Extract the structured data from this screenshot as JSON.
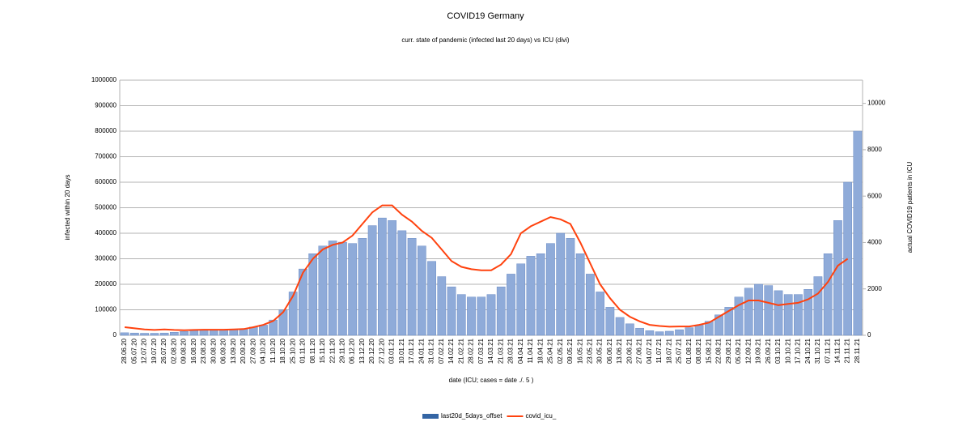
{
  "chart_data": {
    "type": "bar",
    "title": "COVID19 Germany",
    "subtitle": "curr. state of pandemic (infected last 20 days) vs ICU (divi)",
    "x_label": "date (ICU;  cases = date ./. 5 )",
    "y_label": "infected within 20 days",
    "y2_label": "actual COVID19 patients in ICU",
    "categories": [
      "28.06.20",
      "05.07.20",
      "12.07.20",
      "19.07.20",
      "26.07.20",
      "02.08.20",
      "09.08.20",
      "16.08.20",
      "23.08.20",
      "30.08.20",
      "06.09.20",
      "13.09.20",
      "20.09.20",
      "27.09.20",
      "04.10.20",
      "11.10.20",
      "18.10.20",
      "25.10.20",
      "01.11.20",
      "08.11.20",
      "15.11.20",
      "22.11.20",
      "29.11.20",
      "06.12.20",
      "13.12.20",
      "20.12.20",
      "27.12.20",
      "03.01.21",
      "10.01.21",
      "17.01.21",
      "24.01.21",
      "31.01.21",
      "07.02.21",
      "14.02.21",
      "21.02.21",
      "28.02.21",
      "07.03.21",
      "14.03.21",
      "21.03.21",
      "28.03.21",
      "04.04.21",
      "11.04.21",
      "18.04.21",
      "25.04.21",
      "02.05.21",
      "09.05.21",
      "16.05.21",
      "23.05.21",
      "30.05.21",
      "06.06.21",
      "13.06.21",
      "20.06.21",
      "27.06.21",
      "04.07.21",
      "11.07.21",
      "18.07.21",
      "25.07.21",
      "01.08.21",
      "08.08.21",
      "15.08.21",
      "22.08.21",
      "29.08.21",
      "05.09.21",
      "12.09.21",
      "19.09.21",
      "26.09.21",
      "03.10.21",
      "10.10.21",
      "17.10.21",
      "24.10.21",
      "31.10.21",
      "07.11.21",
      "14.11.21",
      "21.11.21",
      "28.11.21"
    ],
    "series": [
      {
        "name": "last20d_5days_offset",
        "type": "bar",
        "color": "#8fabd9",
        "values": [
          10000,
          9000,
          8000,
          8000,
          9000,
          12000,
          15000,
          19000,
          22000,
          23000,
          22000,
          23000,
          26000,
          32000,
          40000,
          60000,
          100000,
          170000,
          260000,
          320000,
          350000,
          370000,
          365000,
          360000,
          380000,
          430000,
          460000,
          450000,
          410000,
          380000,
          350000,
          290000,
          230000,
          190000,
          160000,
          150000,
          150000,
          160000,
          190000,
          240000,
          280000,
          310000,
          320000,
          360000,
          400000,
          380000,
          320000,
          240000,
          170000,
          110000,
          70000,
          45000,
          28000,
          18000,
          14000,
          16000,
          22000,
          30000,
          40000,
          55000,
          80000,
          110000,
          150000,
          185000,
          200000,
          195000,
          175000,
          160000,
          160000,
          180000,
          230000,
          320000,
          450000,
          600000,
          800000
        ]
      },
      {
        "name": "covid_icu_",
        "type": "line",
        "axis": "y2",
        "color": "#ff420e",
        "values": [
          350,
          300,
          250,
          230,
          250,
          230,
          220,
          230,
          240,
          240,
          240,
          250,
          270,
          350,
          450,
          620,
          1000,
          1700,
          2700,
          3300,
          3700,
          3900,
          4000,
          4300,
          4800,
          5300,
          5600,
          5600,
          5200,
          4900,
          4500,
          4200,
          3700,
          3200,
          2950,
          2850,
          2800,
          2800,
          3050,
          3500,
          4400,
          4700,
          4900,
          5100,
          5000,
          4800,
          4000,
          3100,
          2200,
          1600,
          1100,
          800,
          600,
          450,
          400,
          370,
          380,
          380,
          450,
          550,
          800,
          1050,
          1300,
          1500,
          1500,
          1400,
          1300,
          1350,
          1400,
          1550,
          1800,
          2300,
          3000,
          3300,
          null
        ]
      }
    ],
    "ylim": [
      0,
      1000000
    ],
    "yticks": [
      0,
      100000,
      200000,
      300000,
      400000,
      500000,
      600000,
      700000,
      800000,
      900000,
      1000000
    ],
    "y2lim": [
      0,
      11000
    ],
    "y2ticks": [
      0,
      2000,
      4000,
      6000,
      8000,
      10000
    ],
    "grid": true,
    "legend": "bottom"
  }
}
